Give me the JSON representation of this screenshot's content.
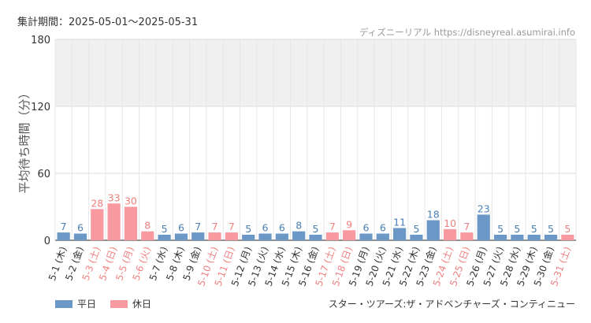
{
  "header": {
    "period": "集計期間：2025-05-01〜2025-05-31",
    "site": "ディズニーリアル https://disneyreal.asumirai.info"
  },
  "footer": {
    "attraction": "スター・ツアーズ:ザ・アドベンチャーズ・コンティニュー"
  },
  "colors": {
    "weekday": "#6b98c6",
    "holiday": "#f89aa0",
    "holiday_text": "#f08080",
    "weekday_text": "#4a7fb5"
  },
  "chart_data": {
    "type": "bar",
    "ylabel": "平均待ち時間（分）",
    "ylim": [
      0,
      180
    ],
    "yticks": [
      0,
      60,
      120,
      180
    ],
    "shaded_band": [
      120,
      180
    ],
    "legend": [
      {
        "name": "平日",
        "kind": "weekday"
      },
      {
        "name": "休日",
        "kind": "holiday"
      }
    ],
    "legend_position": "bottom-left",
    "categories": [
      "5-1 (木)",
      "5-2 (金)",
      "5-3 (土)",
      "5-4 (日)",
      "5-5 (月)",
      "5-6 (火)",
      "5-7 (水)",
      "5-8 (木)",
      "5-9 (金)",
      "5-10 (土)",
      "5-11 (日)",
      "5-12 (月)",
      "5-13 (火)",
      "5-14 (水)",
      "5-15 (木)",
      "5-16 (金)",
      "5-17 (土)",
      "5-18 (日)",
      "5-19 (月)",
      "5-20 (火)",
      "5-21 (水)",
      "5-22 (木)",
      "5-23 (金)",
      "5-24 (土)",
      "5-25 (日)",
      "5-26 (月)",
      "5-27 (火)",
      "5-28 (水)",
      "5-29 (木)",
      "5-30 (金)",
      "5-31 (土)"
    ],
    "values": [
      7,
      6,
      28,
      33,
      30,
      8,
      5,
      6,
      7,
      7,
      7,
      5,
      6,
      6,
      8,
      5,
      7,
      9,
      6,
      6,
      11,
      5,
      18,
      10,
      7,
      23,
      5,
      5,
      5,
      5,
      5
    ],
    "holiday": [
      false,
      false,
      true,
      true,
      true,
      true,
      false,
      false,
      false,
      true,
      true,
      false,
      false,
      false,
      false,
      false,
      true,
      true,
      false,
      false,
      false,
      false,
      false,
      true,
      true,
      false,
      false,
      false,
      false,
      false,
      true
    ]
  }
}
